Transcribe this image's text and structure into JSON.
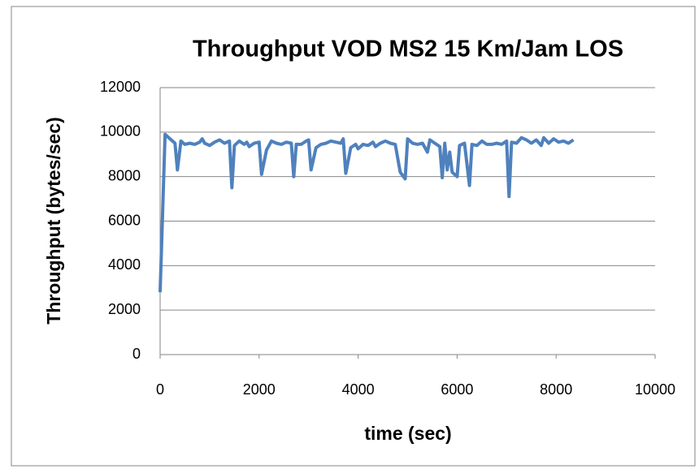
{
  "chart_data": {
    "type": "line",
    "title": "Throughput VOD MS2 15 Km/Jam LOS",
    "x_label": "time (sec)",
    "y_label": "Throughput (bytes/sec)",
    "xlim": [
      0,
      10000
    ],
    "xticks": [
      0,
      2000,
      4000,
      6000,
      8000,
      10000
    ],
    "ylim": [
      0,
      12000
    ],
    "yticks": [
      0,
      2000,
      4000,
      6000,
      8000,
      10000,
      12000
    ],
    "grid": true,
    "x": [
      0,
      100,
      200,
      300,
      350,
      420,
      500,
      600,
      700,
      800,
      850,
      900,
      1000,
      1100,
      1200,
      1300,
      1400,
      1450,
      1500,
      1600,
      1700,
      1750,
      1800,
      1900,
      2000,
      2050,
      2150,
      2250,
      2350,
      2450,
      2550,
      2650,
      2700,
      2750,
      2850,
      2950,
      3000,
      3050,
      3150,
      3250,
      3350,
      3450,
      3550,
      3650,
      3700,
      3750,
      3850,
      3950,
      4000,
      4100,
      4200,
      4300,
      4350,
      4450,
      4550,
      4650,
      4750,
      4850,
      4950,
      5000,
      5100,
      5200,
      5300,
      5400,
      5450,
      5550,
      5650,
      5700,
      5750,
      5800,
      5850,
      5900,
      6000,
      6050,
      6150,
      6250,
      6300,
      6400,
      6500,
      6600,
      6700,
      6800,
      6900,
      7000,
      7050,
      7100,
      7200,
      7300,
      7400,
      7500,
      7600,
      7700,
      7750,
      7850,
      7950,
      8050,
      8150,
      8250,
      8350
    ],
    "series": [
      {
        "name": "Throughput",
        "color": "#4f81bd",
        "values": [
          2800,
          9900,
          9700,
          9500,
          8300,
          9600,
          9450,
          9500,
          9450,
          9550,
          9700,
          9500,
          9400,
          9550,
          9650,
          9500,
          9600,
          7500,
          9400,
          9600,
          9450,
          9550,
          9350,
          9500,
          9550,
          8100,
          9200,
          9600,
          9500,
          9450,
          9550,
          9500,
          8000,
          9450,
          9450,
          9600,
          9650,
          8300,
          9300,
          9450,
          9500,
          9600,
          9550,
          9500,
          9700,
          8150,
          9300,
          9450,
          9250,
          9450,
          9400,
          9550,
          9350,
          9500,
          9600,
          9500,
          9450,
          8200,
          7900,
          9700,
          9500,
          9450,
          9500,
          9100,
          9650,
          9500,
          9350,
          7950,
          9500,
          8300,
          9100,
          8200,
          8000,
          9400,
          9500,
          7600,
          9450,
          9400,
          9600,
          9450,
          9450,
          9500,
          9450,
          9600,
          7100,
          9550,
          9500,
          9750,
          9650,
          9500,
          9650,
          9400,
          9750,
          9500,
          9700,
          9550,
          9600,
          9500,
          9650
        ]
      }
    ]
  }
}
